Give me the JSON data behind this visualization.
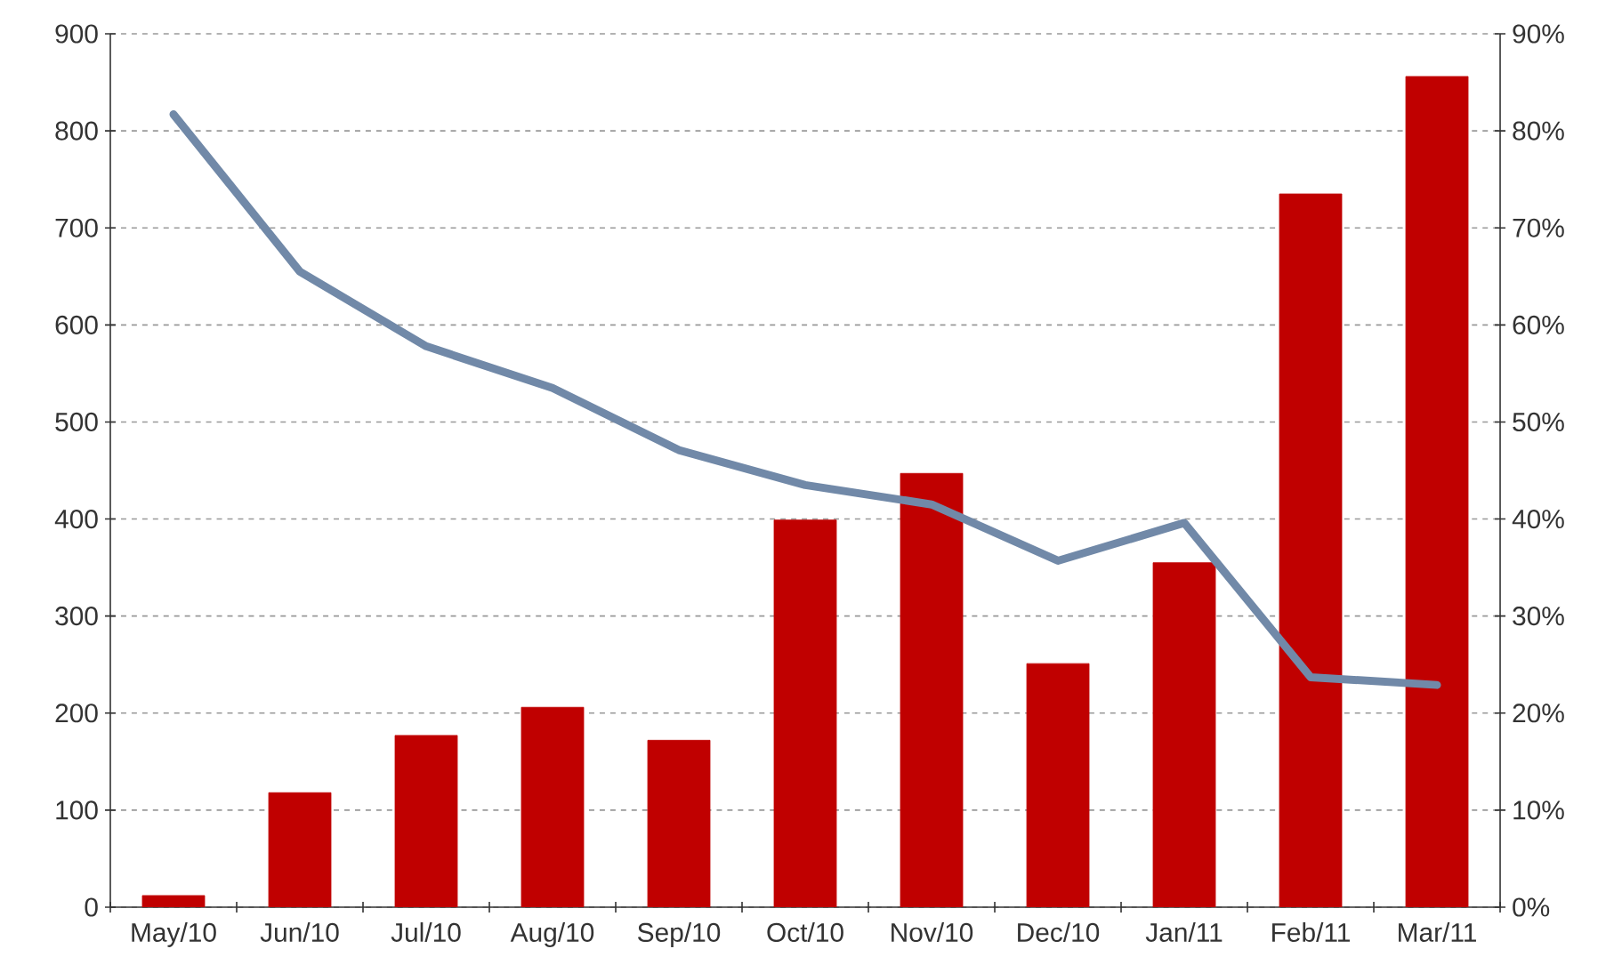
{
  "chart_data": {
    "type": "bar",
    "categories": [
      "May/10",
      "Jun/10",
      "Jul/10",
      "Aug/10",
      "Sep/10",
      "Oct/10",
      "Nov/10",
      "Dec/10",
      "Jan/11",
      "Feb/11",
      "Mar/11"
    ],
    "series": [
      {
        "color": "#c00000",
        "values": [
          12,
          118,
          177,
          206,
          172,
          399,
          447,
          251,
          355,
          735,
          856
        ]
      },
      {
        "type": "line",
        "axis": "y2",
        "color": "#7189a8",
        "line_style": "solid",
        "values": [
          81.7,
          65.5,
          57.8,
          53.5,
          47.1,
          43.5,
          41.5,
          35.7,
          39.6,
          23.7,
          22.9
        ]
      }
    ],
    "ylim": [
      0,
      900
    ],
    "yticks": [
      0,
      100,
      200,
      300,
      400,
      500,
      600,
      700,
      800,
      900
    ],
    "y2lim": [
      0,
      90
    ],
    "y2ticks": [
      {
        "value": 0,
        "label": "0%"
      },
      {
        "value": 10,
        "label": "10%"
      },
      {
        "value": 20,
        "label": "20%"
      },
      {
        "value": 30,
        "label": "30%"
      },
      {
        "value": 40,
        "label": "40%"
      },
      {
        "value": 50,
        "label": "50%"
      },
      {
        "value": 60,
        "label": "60%"
      },
      {
        "value": 70,
        "label": "70%"
      },
      {
        "value": 80,
        "label": "80%"
      },
      {
        "value": 90,
        "label": "90%"
      }
    ],
    "grid": "y"
  }
}
